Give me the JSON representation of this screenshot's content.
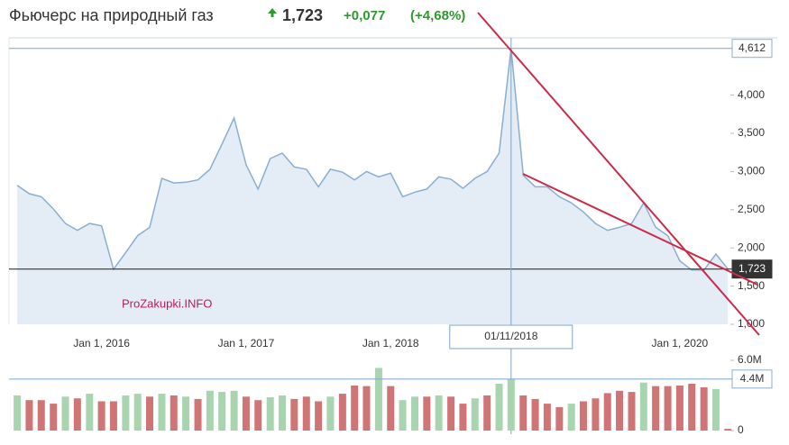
{
  "quote": {
    "title": "Фьючерс на природный газ",
    "price": "1,723",
    "change": "+0,077",
    "change_pct": "(+4,68%)"
  },
  "watermark": "ProZakupki.INFO",
  "chart_data": [
    {
      "type": "area",
      "x": [
        2015.417,
        2015.5,
        2015.583,
        2015.667,
        2015.75,
        2015.833,
        2015.917,
        2016,
        2016.083,
        2016.167,
        2016.25,
        2016.333,
        2016.417,
        2016.5,
        2016.583,
        2016.667,
        2016.75,
        2016.833,
        2016.917,
        2017,
        2017.083,
        2017.167,
        2017.25,
        2017.333,
        2017.417,
        2017.5,
        2017.583,
        2017.667,
        2017.75,
        2017.833,
        2017.917,
        2018,
        2018.083,
        2018.167,
        2018.25,
        2018.333,
        2018.417,
        2018.5,
        2018.583,
        2018.667,
        2018.75,
        2018.833,
        2018.917,
        2019,
        2019.083,
        2019.167,
        2019.25,
        2019.333,
        2019.417,
        2019.5,
        2019.583,
        2019.667,
        2019.75,
        2019.833,
        2019.917,
        2020,
        2020.083,
        2020.167,
        2020.25,
        2020.333
      ],
      "values": [
        2.82,
        2.71,
        2.67,
        2.51,
        2.32,
        2.23,
        2.32,
        2.29,
        1.72,
        1.94,
        2.16,
        2.27,
        2.91,
        2.85,
        2.86,
        2.89,
        3.03,
        3.36,
        3.7,
        3.09,
        2.77,
        3.17,
        3.24,
        3.06,
        3.03,
        2.8,
        3.03,
        2.99,
        2.89,
        3.0,
        2.93,
        2.98,
        2.67,
        2.73,
        2.77,
        2.93,
        2.9,
        2.78,
        2.91,
        3.0,
        3.24,
        4.612,
        2.95,
        2.8,
        2.8,
        2.67,
        2.59,
        2.47,
        2.32,
        2.23,
        2.27,
        2.32,
        2.59,
        2.27,
        2.16,
        1.83,
        1.71,
        1.71,
        1.92,
        1.723
      ],
      "color": "#8aaed0",
      "fill": "#e4edf6",
      "xlim": [
        2015.36,
        2020.35
      ],
      "ylim": [
        1,
        4.75
      ],
      "xticks": [
        {
          "value": 2016,
          "label": "Jan 1, 2016"
        },
        {
          "value": 2017,
          "label": "Jan 1, 2017"
        },
        {
          "value": 2018,
          "label": "Jan 1, 2018"
        },
        {
          "value": 2020,
          "label": "Jan 1, 2020"
        }
      ],
      "yticks": [
        {
          "value": 1,
          "label": "1,000"
        },
        {
          "value": 1.5,
          "label": "1,500"
        },
        {
          "value": 2,
          "label": "2,000"
        },
        {
          "value": 2.5,
          "label": "2,500"
        },
        {
          "value": 3,
          "label": "3,000"
        },
        {
          "value": 3.5,
          "label": "3,500"
        },
        {
          "value": 4,
          "label": "4,000"
        }
      ],
      "markers": [
        {
          "value": 4.612,
          "label": "4,612",
          "color": "#8aaed0",
          "label_fill": "#ffffff"
        },
        {
          "value": 1.723,
          "label": "1,723",
          "color": "#333333",
          "label_fill": "#333333"
        }
      ],
      "crosshair": {
        "x": 2018.833,
        "label": "01/11/2018"
      }
    },
    {
      "type": "bar",
      "x": [
        2015.417,
        2015.5,
        2015.583,
        2015.667,
        2015.75,
        2015.833,
        2015.917,
        2016,
        2016.083,
        2016.167,
        2016.25,
        2016.333,
        2016.417,
        2016.5,
        2016.583,
        2016.667,
        2016.75,
        2016.833,
        2016.917,
        2017,
        2017.083,
        2017.167,
        2017.25,
        2017.333,
        2017.417,
        2017.5,
        2017.583,
        2017.667,
        2017.75,
        2017.833,
        2017.917,
        2018,
        2018.083,
        2018.167,
        2018.25,
        2018.333,
        2018.417,
        2018.5,
        2018.583,
        2018.667,
        2018.75,
        2018.833,
        2018.917,
        2019,
        2019.083,
        2019.167,
        2019.25,
        2019.333,
        2019.417,
        2019.5,
        2019.583,
        2019.667,
        2019.75,
        2019.833,
        2019.917,
        2020,
        2020.083,
        2020.167,
        2020.25,
        2020.333
      ],
      "values": [
        3000000,
        2600000,
        2600000,
        2300000,
        2900000,
        2750000,
        3150000,
        2500000,
        2500000,
        3000000,
        3150000,
        2900000,
        3150000,
        3000000,
        2900000,
        2700000,
        3400000,
        3300000,
        3400000,
        2900000,
        2600000,
        2850000,
        3000000,
        2700000,
        2900000,
        2500000,
        2900000,
        3150000,
        3850000,
        3800000,
        5350000,
        3800000,
        2600000,
        2900000,
        2900000,
        3000000,
        2900000,
        2300000,
        2750000,
        3000000,
        4000000,
        4400000,
        3000000,
        2700000,
        2300000,
        2000000,
        2300000,
        2500000,
        2750000,
        3200000,
        3400000,
        3300000,
        4100000,
        3800000,
        3800000,
        3850000,
        4000000,
        3700000,
        3550000,
        150000
      ],
      "colors": [
        "#a8d5b0",
        "#d07575",
        "#d07575",
        "#d07575",
        "#a8d5b0",
        "#d07575",
        "#a8d5b0",
        "#d07575",
        "#d07575",
        "#a8d5b0",
        "#a8d5b0",
        "#d07575",
        "#a8d5b0",
        "#d07575",
        "#a8d5b0",
        "#d07575",
        "#a8d5b0",
        "#a8d5b0",
        "#a8d5b0",
        "#d07575",
        "#d07575",
        "#a8d5b0",
        "#a8d5b0",
        "#d07575",
        "#d07575",
        "#d07575",
        "#a8d5b0",
        "#d07575",
        "#d07575",
        "#d07575",
        "#a8d5b0",
        "#d07575",
        "#a8d5b0",
        "#a8d5b0",
        "#d07575",
        "#a8d5b0",
        "#d07575",
        "#d07575",
        "#a8d5b0",
        "#d07575",
        "#a8d5b0",
        "#a8d5b0",
        "#d07575",
        "#d07575",
        "#d07575",
        "#d07575",
        "#a8d5b0",
        "#d07575",
        "#d07575",
        "#d07575",
        "#d07575",
        "#d07575",
        "#a8d5b0",
        "#d07575",
        "#d07575",
        "#d07575",
        "#d07575",
        "#d07575",
        "#a8d5b0",
        "#d07575"
      ],
      "xlim": [
        2015.36,
        2020.35
      ],
      "ylim": [
        0,
        6000000
      ],
      "yticks": [
        0,
        {
          "value": 6000000,
          "label": "6.0M"
        }
      ],
      "markers": [
        {
          "value": 4400000,
          "label": "4.4M",
          "color": "#8aaed0",
          "label_fill": "#ffffff"
        }
      ]
    }
  ]
}
